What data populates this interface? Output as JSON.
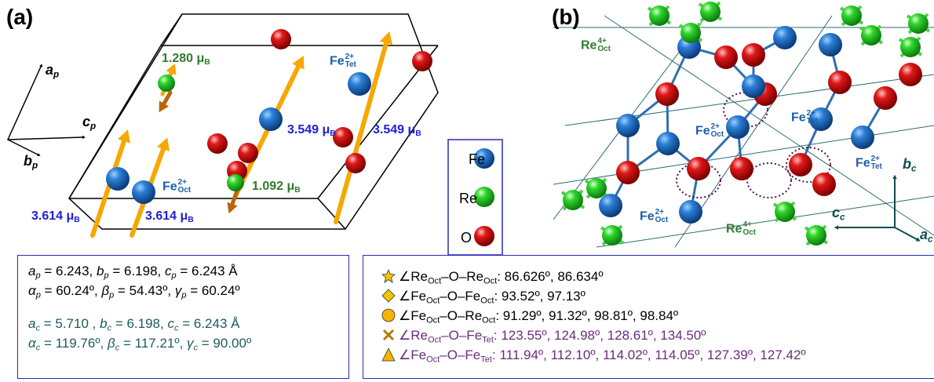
{
  "panel_a": {
    "label": "(a)",
    "axes": [
      {
        "text": "a",
        "sub": "p"
      },
      {
        "text": "c",
        "sub": "p"
      },
      {
        "text": "b",
        "sub": "p"
      }
    ],
    "ions": [
      {
        "text": "Fe",
        "sup": "2+",
        "sub": "Tet"
      },
      {
        "text": "Fe",
        "sup": "2+",
        "sub": "Oct"
      }
    ],
    "moments": [
      {
        "text": "1.280 μ",
        "sub": "B"
      },
      {
        "text": "3.549 μ",
        "sub": "B"
      },
      {
        "text": "3.549 μ",
        "sub": "B"
      },
      {
        "text": "1.092 μ",
        "sub": "B"
      },
      {
        "text": "3.614 μ",
        "sub": "B"
      },
      {
        "text": "3.614 μ",
        "sub": "B"
      }
    ]
  },
  "legend": [
    "Fe",
    "Re",
    "O"
  ],
  "panel_b": {
    "label": "(b)",
    "ions": [
      {
        "text": "Re",
        "sup": "4+",
        "sub": "Oct"
      },
      {
        "text": "Fe",
        "sup": "2+",
        "sub": "Tet"
      },
      {
        "text": "Fe",
        "sup": "2+",
        "sub": "Oct"
      },
      {
        "text": "Fe",
        "sup": "2+",
        "sub": "Tet"
      },
      {
        "text": "Fe",
        "sup": "2+",
        "sub": "Oct"
      },
      {
        "text": "Re",
        "sup": "4+",
        "sub": "Oct"
      }
    ],
    "axes": [
      {
        "text": "b",
        "sub": "c"
      },
      {
        "text": "c",
        "sub": "c"
      },
      {
        "text": "a",
        "sub": "c"
      }
    ]
  },
  "lattice": {
    "primitive": [
      [
        {
          "text": "a",
          "sub": "p",
          "value": " = 6.243, "
        },
        {
          "text": "b",
          "sub": "p",
          "value": " = 6.198, "
        },
        {
          "text": "c",
          "sub": "p",
          "value": " = 6.243 Å"
        }
      ],
      [
        {
          "text": "α",
          "sub": "p",
          "value": " = 60.24º, "
        },
        {
          "text": "β",
          "sub": "p",
          "value": " = 54.43º, "
        },
        {
          "text": "γ",
          "sub": "p",
          "value": " = 60.24º"
        }
      ]
    ],
    "conventional": [
      [
        {
          "text": "a",
          "sub": "c",
          "value": " = 5.710 , "
        },
        {
          "text": "b",
          "sub": "c",
          "value": " = 6.198, "
        },
        {
          "text": "c",
          "sub": "c",
          "value": " = 6.243 Å"
        }
      ],
      [
        {
          "text": "α",
          "sub": "c",
          "value": " = 119.76º, "
        },
        {
          "text": "β",
          "sub": "c",
          "value": " = 117.21º, "
        },
        {
          "text": "γ",
          "sub": "c",
          "value": " = 90.00º"
        }
      ]
    ]
  },
  "angles": [
    [
      {
        "text": "∠Re"
      },
      {
        "sub": "Oct"
      },
      {
        "text": "–O–Re"
      },
      {
        "sub": "Oct"
      },
      {
        "text": ": 86.626º, 86.634º"
      }
    ],
    [
      {
        "text": "∠Fe"
      },
      {
        "sub": "Oct"
      },
      {
        "text": "–O–Fe"
      },
      {
        "sub": "Oct"
      },
      {
        "text": ": 93.52º, 97.13º"
      }
    ],
    [
      {
        "text": "∠Fe"
      },
      {
        "sub": "Oct"
      },
      {
        "text": "–O–Re"
      },
      {
        "sub": "Oct"
      },
      {
        "text": ": 91.29º, 91.32º, 98.81º, 98.84º"
      }
    ],
    [
      {
        "text": "∠Re"
      },
      {
        "sub": "Oct"
      },
      {
        "text": "–O–Fe"
      },
      {
        "sub": "Tet"
      },
      {
        "text": ": 123.55º, 124.98º, 128.61º, 134.50º"
      }
    ],
    [
      {
        "text": "∠Fe"
      },
      {
        "sub": "Oct"
      },
      {
        "text": "–O–Fe"
      },
      {
        "sub": "Tet"
      },
      {
        "text": ": 111.94º, 112.10º, 114.02º, 114.05º, 127.39º, 127.42º"
      }
    ]
  ]
}
